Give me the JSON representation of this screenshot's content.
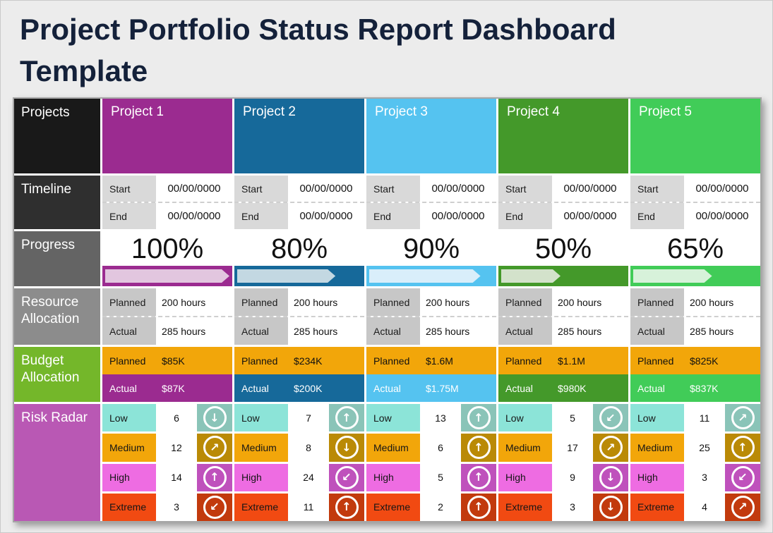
{
  "title": "Project Portfolio Status Report Dashboard Template",
  "colors": {
    "title": "#14213a",
    "planned_orange": "#f2a60a",
    "sections": {
      "projects": "#191919",
      "timeline": "#2f2f2f",
      "progress": "#646464",
      "resource": "#8c8c8c",
      "budget": "#74b72a",
      "risk": "#b958b4"
    }
  },
  "section_labels": {
    "projects": "Projects",
    "timeline": "Timeline",
    "progress": "Progress",
    "resource": "Resource Allocation",
    "budget": "Budget Allocation",
    "risk": "Risk Radar"
  },
  "fields": {
    "start": "Start",
    "end": "End",
    "planned": "Planned",
    "actual": "Actual"
  },
  "risk_levels": [
    {
      "label": "Low",
      "label_bg": "#8ce4d8",
      "icon_bg": "#8ac4b8"
    },
    {
      "label": "Medium",
      "label_bg": "#f2a60a",
      "icon_bg": "#ba8a06"
    },
    {
      "label": "High",
      "label_bg": "#ee6ce2",
      "icon_bg": "#bf51bc"
    },
    {
      "label": "Extreme",
      "label_bg": "#f14a12",
      "icon_bg": "#c23a0d"
    }
  ],
  "projects": [
    {
      "name": "Project 1",
      "color": "#9b2b90",
      "progress_light": "#e2c6df",
      "start": "00/00/0000",
      "end": "00/00/0000",
      "progress": 100,
      "progress_label": "100%",
      "resource_planned": "200 hours",
      "resource_actual": "285 hours",
      "budget_planned": "$85K",
      "budget_actual": "$87K",
      "risks": [
        {
          "count": "6",
          "trend": "down",
          "glyph": "↓"
        },
        {
          "count": "12",
          "trend": "up-right",
          "glyph": "↗"
        },
        {
          "count": "14",
          "trend": "up",
          "glyph": "↑"
        },
        {
          "count": "3",
          "trend": "down-left",
          "glyph": "↙"
        }
      ]
    },
    {
      "name": "Project 2",
      "color": "#16699a",
      "progress_light": "#c3d8e2",
      "start": "00/00/0000",
      "end": "00/00/0000",
      "progress": 80,
      "progress_label": "80%",
      "resource_planned": "200 hours",
      "resource_actual": "285 hours",
      "budget_planned": "$234K",
      "budget_actual": "$200K",
      "risks": [
        {
          "count": "7",
          "trend": "up",
          "glyph": "↑"
        },
        {
          "count": "8",
          "trend": "down",
          "glyph": "↓"
        },
        {
          "count": "24",
          "trend": "down-left",
          "glyph": "↙"
        },
        {
          "count": "11",
          "trend": "up",
          "glyph": "↑"
        }
      ]
    },
    {
      "name": "Project 3",
      "color": "#55c3f0",
      "progress_light": "#d9eefa",
      "start": "00/00/0000",
      "end": "00/00/0000",
      "progress": 90,
      "progress_label": "90%",
      "resource_planned": "200 hours",
      "resource_actual": "285 hours",
      "budget_planned": "$1.6M",
      "budget_actual": "$1.75M",
      "risks": [
        {
          "count": "13",
          "trend": "up",
          "glyph": "↑"
        },
        {
          "count": "6",
          "trend": "up",
          "glyph": "↑"
        },
        {
          "count": "5",
          "trend": "up",
          "glyph": "↑"
        },
        {
          "count": "2",
          "trend": "up",
          "glyph": "↑"
        }
      ]
    },
    {
      "name": "Project 4",
      "color": "#44992a",
      "progress_light": "#d3e2cb",
      "start": "00/00/0000",
      "end": "00/00/0000",
      "progress": 50,
      "progress_label": "50%",
      "resource_planned": "200 hours",
      "resource_actual": "285 hours",
      "budget_planned": "$1.1M",
      "budget_actual": "$980K",
      "risks": [
        {
          "count": "5",
          "trend": "down-left",
          "glyph": "↙"
        },
        {
          "count": "17",
          "trend": "up-right",
          "glyph": "↗"
        },
        {
          "count": "9",
          "trend": "down",
          "glyph": "↓"
        },
        {
          "count": "3",
          "trend": "down",
          "glyph": "↓"
        }
      ]
    },
    {
      "name": "Project 5",
      "color": "#41cc58",
      "progress_light": "#d7f2da",
      "start": "00/00/0000",
      "end": "00/00/0000",
      "progress": 65,
      "progress_label": "65%",
      "resource_planned": "200 hours",
      "resource_actual": "285 hours",
      "budget_planned": "$825K",
      "budget_actual": "$837K",
      "risks": [
        {
          "count": "11",
          "trend": "up-right",
          "glyph": "↗"
        },
        {
          "count": "25",
          "trend": "up",
          "glyph": "↑"
        },
        {
          "count": "3",
          "trend": "down-left",
          "glyph": "↙"
        },
        {
          "count": "4",
          "trend": "up-right",
          "glyph": "↗"
        }
      ]
    }
  ],
  "chart_data": {
    "type": "table",
    "title": "Project Portfolio Status Report Dashboard Template",
    "columns": [
      "Projects",
      "Project 1",
      "Project 2",
      "Project 3",
      "Project 4",
      "Project 5"
    ],
    "rows": [
      [
        "Timeline Start",
        "00/00/0000",
        "00/00/0000",
        "00/00/0000",
        "00/00/0000",
        "00/00/0000"
      ],
      [
        "Timeline End",
        "00/00/0000",
        "00/00/0000",
        "00/00/0000",
        "00/00/0000",
        "00/00/0000"
      ],
      [
        "Progress %",
        100,
        80,
        90,
        50,
        65
      ],
      [
        "Resource Planned",
        "200 hours",
        "200 hours",
        "200 hours",
        "200 hours",
        "200 hours"
      ],
      [
        "Resource Actual",
        "285 hours",
        "285 hours",
        "285 hours",
        "285 hours",
        "285 hours"
      ],
      [
        "Budget Planned",
        "$85K",
        "$234K",
        "$1.6M",
        "$1.1M",
        "$825K"
      ],
      [
        "Budget Actual",
        "$87K",
        "$200K",
        "$1.75M",
        "$980K",
        "$837K"
      ],
      [
        "Risk Low",
        6,
        7,
        13,
        5,
        11
      ],
      [
        "Risk Medium",
        12,
        8,
        6,
        17,
        25
      ],
      [
        "Risk High",
        14,
        24,
        5,
        9,
        3
      ],
      [
        "Risk Extreme",
        3,
        11,
        2,
        3,
        4
      ]
    ]
  }
}
